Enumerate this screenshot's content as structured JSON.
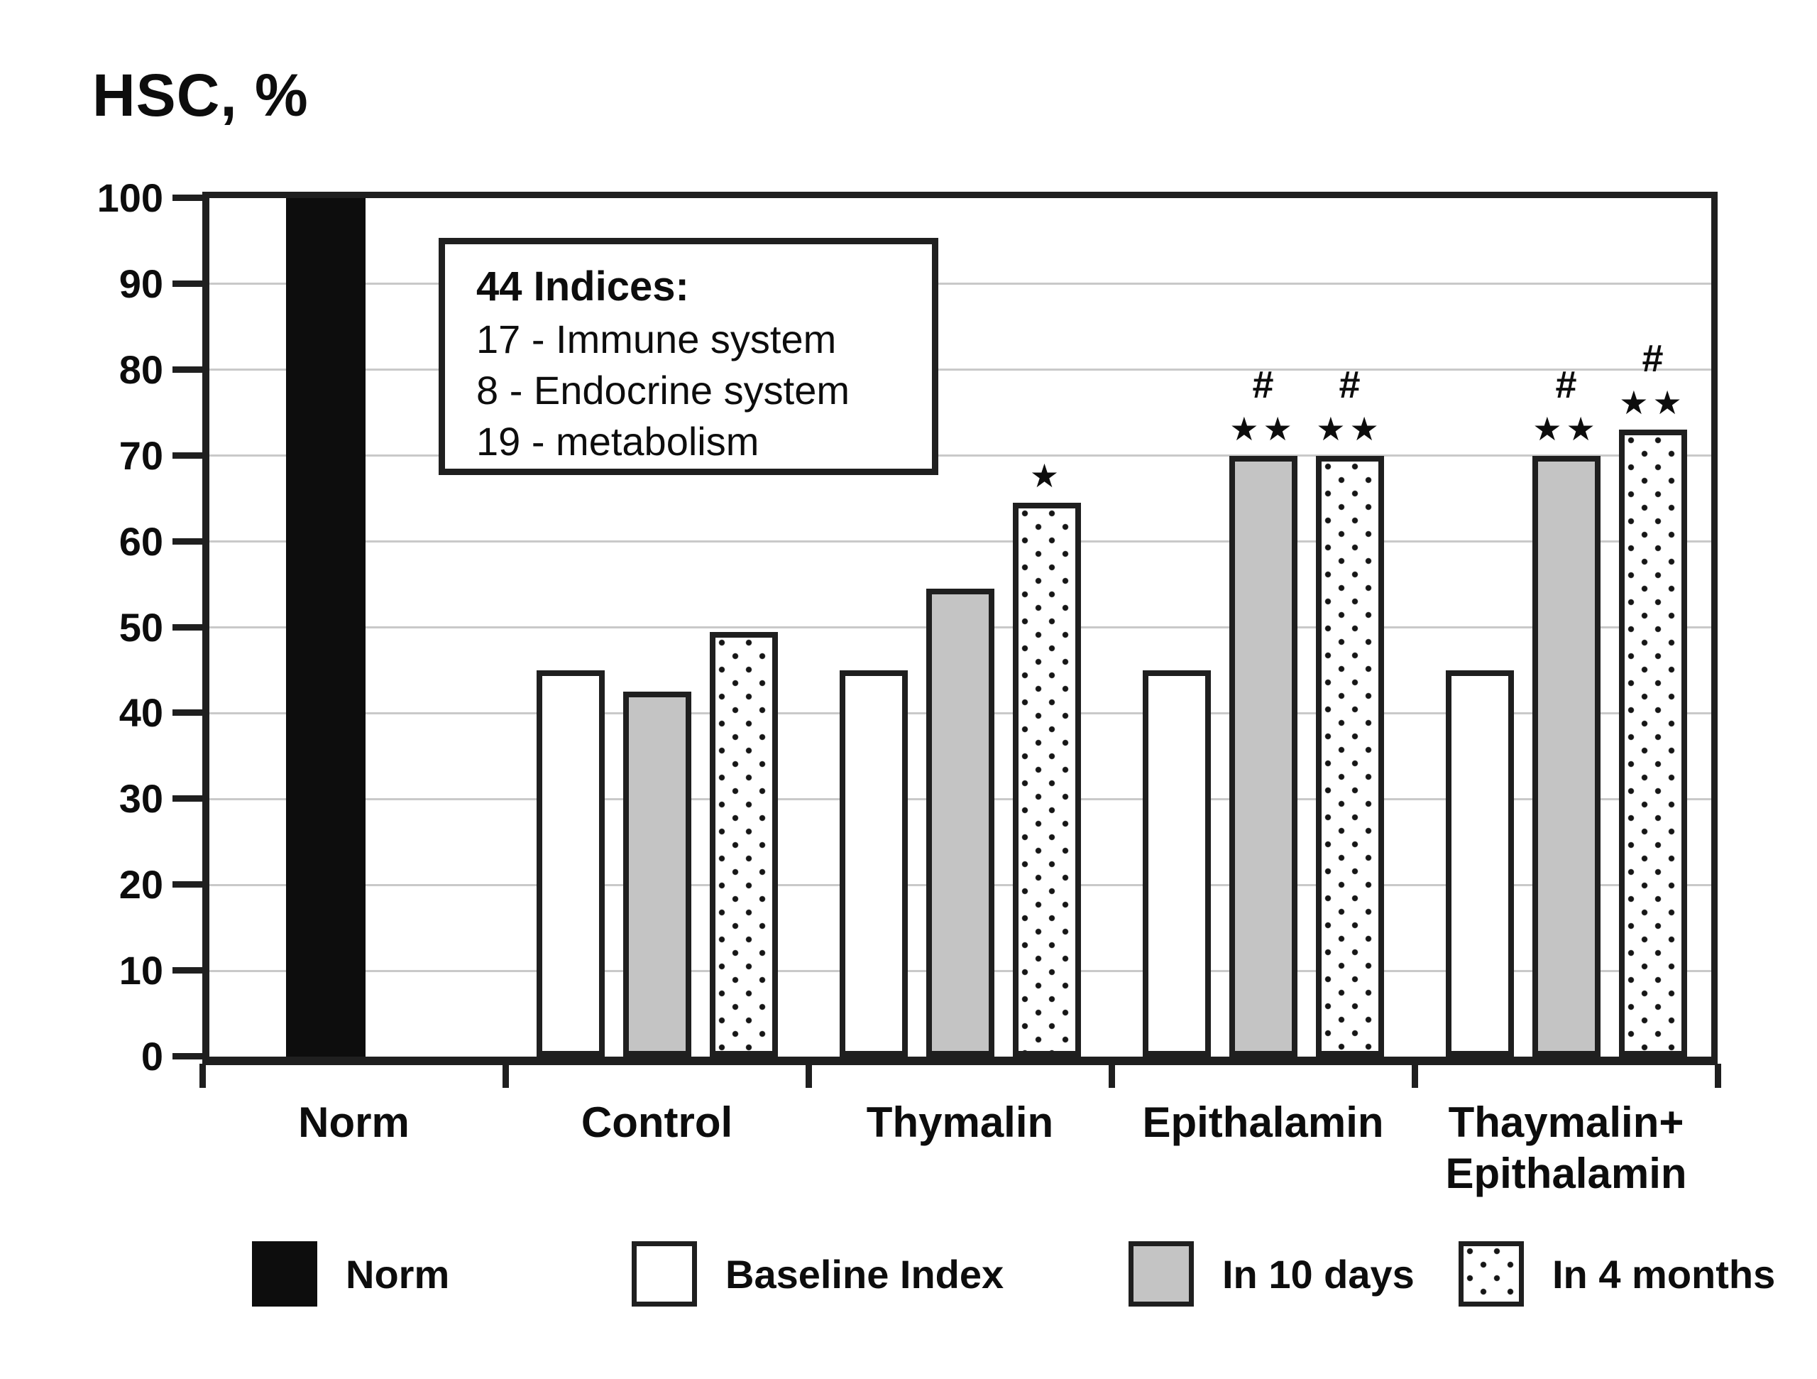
{
  "title": "HSC, %",
  "annotation_box": {
    "heading": "44 Indices:",
    "lines": [
      "17 - Immune system",
      "8 - Endocrine system",
      "19 - metabolism"
    ]
  },
  "chart_data": {
    "type": "bar",
    "title": "HSC, %",
    "ylabel": "HSC, %",
    "ylim": [
      0,
      100
    ],
    "yticks": [
      0,
      10,
      20,
      30,
      40,
      50,
      60,
      70,
      80,
      90,
      100
    ],
    "grid": true,
    "legend_position": "bottom",
    "categories": [
      "Norm",
      "Control",
      "Thymalin",
      "Epithalamin",
      "Thaymalin+\nEpithalamin"
    ],
    "series": [
      {
        "name": "Norm",
        "style": "black",
        "values": [
          100,
          null,
          null,
          null,
          null
        ]
      },
      {
        "name": "Baseline Index",
        "style": "white",
        "values": [
          null,
          45,
          45,
          45,
          45
        ]
      },
      {
        "name": "In 10 days",
        "style": "gray",
        "values": [
          null,
          42.5,
          54.5,
          70,
          70
        ]
      },
      {
        "name": "In 4 months",
        "style": "dotted",
        "values": [
          null,
          49.5,
          64.5,
          70,
          73
        ]
      }
    ],
    "annotations": [
      {
        "category_index": 2,
        "series_index": 3,
        "stars": "★",
        "hash": ""
      },
      {
        "category_index": 3,
        "series_index": 2,
        "stars": "★★",
        "hash": "#"
      },
      {
        "category_index": 3,
        "series_index": 3,
        "stars": "★★",
        "hash": "#"
      },
      {
        "category_index": 4,
        "series_index": 2,
        "stars": "★★",
        "hash": "#"
      },
      {
        "category_index": 4,
        "series_index": 3,
        "stars": "★★",
        "hash": "#"
      }
    ],
    "legend": [
      {
        "label": "Norm",
        "style": "black"
      },
      {
        "label": "Baseline Index",
        "style": "white"
      },
      {
        "label": "In 10 days",
        "style": "gray"
      },
      {
        "label": "In 4 months",
        "style": "dotted"
      }
    ],
    "colors": {
      "bar_black": "#0d0d0d",
      "bar_white": "#ffffff",
      "bar_gray": "#c4c4c4",
      "border": "#1f1f1f",
      "grid": "#c9c9c9",
      "text": "#111111"
    }
  }
}
